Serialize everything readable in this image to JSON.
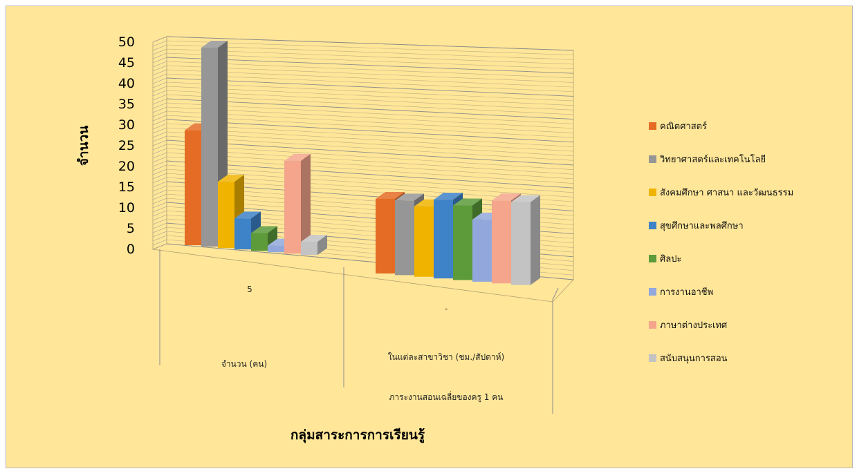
{
  "chart_data": {
    "type": "bar",
    "title": "",
    "ylabel": "จำนวน",
    "xlabel": "กลุ่มสาระการการเรียนรู้",
    "ylim": [
      0,
      50
    ],
    "yticks": [
      0,
      5,
      10,
      15,
      20,
      25,
      30,
      35,
      40,
      45,
      50
    ],
    "grid": true,
    "legend_position": "right",
    "categories": [
      {
        "label_lines": [
          "จำนวน (คน)"
        ],
        "data_label": "5"
      },
      {
        "label_lines": [
          "ในแต่ละสาขาวิชา (ชม./สัปดาห์)",
          "ภาระงานสอนเฉลี่ยของครู 1 คน"
        ],
        "data_label": "-"
      }
    ],
    "series": [
      {
        "name": "คณิตศาสตร์",
        "color": "#e46c24",
        "values": [
          26,
          18
        ]
      },
      {
        "name": "วิทยาศาสตร์และเทคโนโลยี",
        "color": "#969696",
        "values": [
          45,
          18
        ]
      },
      {
        "name": "สังคมศึกษา ศาสนา และวัฒนธรรม",
        "color": "#f0b400",
        "values": [
          15,
          17
        ]
      },
      {
        "name": "สุขศึกษาและพลศึกษา",
        "color": "#3e82c8",
        "values": [
          7,
          19
        ]
      },
      {
        "name": "ศิลปะ",
        "color": "#5c9a3a",
        "values": [
          4,
          18
        ]
      },
      {
        "name": "การงานอาชีพ",
        "color": "#92a8dc",
        "values": [
          1.5,
          15
        ]
      },
      {
        "name": "ภาษาต่างประเทศ",
        "color": "#f4a58c",
        "values": [
          21,
          20
        ]
      },
      {
        "name": "สนับสนุนการสอน",
        "color": "#c3c3c3",
        "values": [
          3,
          20
        ]
      }
    ]
  }
}
